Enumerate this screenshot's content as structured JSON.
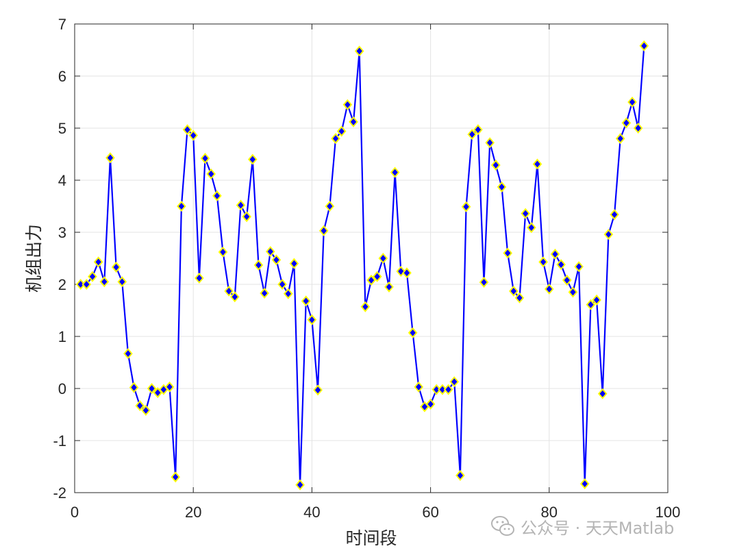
{
  "chart_data": {
    "type": "line",
    "title": "",
    "xlabel": "时间段",
    "ylabel": "机组出力",
    "xlim": [
      0,
      100
    ],
    "ylim": [
      -2,
      7
    ],
    "xticks": [
      0,
      20,
      40,
      60,
      80,
      100
    ],
    "yticks": [
      -2,
      -1,
      0,
      1,
      2,
      3,
      4,
      5,
      6,
      7
    ],
    "grid": true,
    "line_color": "#0000ff",
    "marker": "diamond",
    "marker_face_color": "#0000ff",
    "marker_edge_color": "#ffff00",
    "x": [
      1,
      2,
      3,
      4,
      5,
      6,
      7,
      8,
      9,
      10,
      11,
      12,
      13,
      14,
      15,
      16,
      17,
      18,
      19,
      20,
      21,
      22,
      23,
      24,
      25,
      26,
      27,
      28,
      29,
      30,
      31,
      32,
      33,
      34,
      35,
      36,
      37,
      38,
      39,
      40,
      41,
      42,
      43,
      44,
      45,
      46,
      47,
      48,
      49,
      50,
      51,
      52,
      53,
      54,
      55,
      56,
      57,
      58,
      59,
      60,
      61,
      62,
      63,
      64,
      65,
      66,
      67,
      68,
      69,
      70,
      71,
      72,
      73,
      74,
      75,
      76,
      77,
      78,
      79,
      80,
      81,
      82,
      83,
      84,
      85,
      86,
      87,
      88,
      89,
      90,
      91,
      92,
      93,
      94,
      95,
      96
    ],
    "y": [
      2.0,
      2.0,
      2.15,
      2.43,
      2.05,
      4.43,
      2.33,
      2.05,
      0.67,
      0.02,
      -0.33,
      -0.42,
      0.0,
      -0.08,
      -0.02,
      0.03,
      -1.7,
      3.5,
      4.97,
      4.86,
      2.12,
      4.42,
      4.12,
      3.7,
      2.62,
      1.87,
      1.76,
      3.52,
      3.3,
      4.4,
      2.37,
      1.83,
      2.63,
      2.47,
      2.0,
      1.82,
      2.4,
      -1.85,
      1.68,
      1.32,
      -0.03,
      3.03,
      3.5,
      4.8,
      4.94,
      5.45,
      5.12,
      6.48,
      1.57,
      2.08,
      2.15,
      2.5,
      1.95,
      4.15,
      2.25,
      2.22,
      1.07,
      0.03,
      -0.35,
      -0.3,
      -0.02,
      -0.02,
      -0.02,
      0.13,
      -1.67,
      3.49,
      4.88,
      4.97,
      2.04,
      4.72,
      4.29,
      3.87,
      2.6,
      1.87,
      1.74,
      3.36,
      3.09,
      4.31,
      2.43,
      1.91,
      2.58,
      2.38,
      2.08,
      1.85,
      2.34,
      -1.83,
      1.61,
      1.7,
      -0.1,
      2.96,
      3.34,
      4.8,
      5.1,
      5.5,
      5.0,
      6.58
    ]
  },
  "watermark": {
    "icon": "wechat-icon",
    "text": "公众号 · 天天Matlab"
  }
}
